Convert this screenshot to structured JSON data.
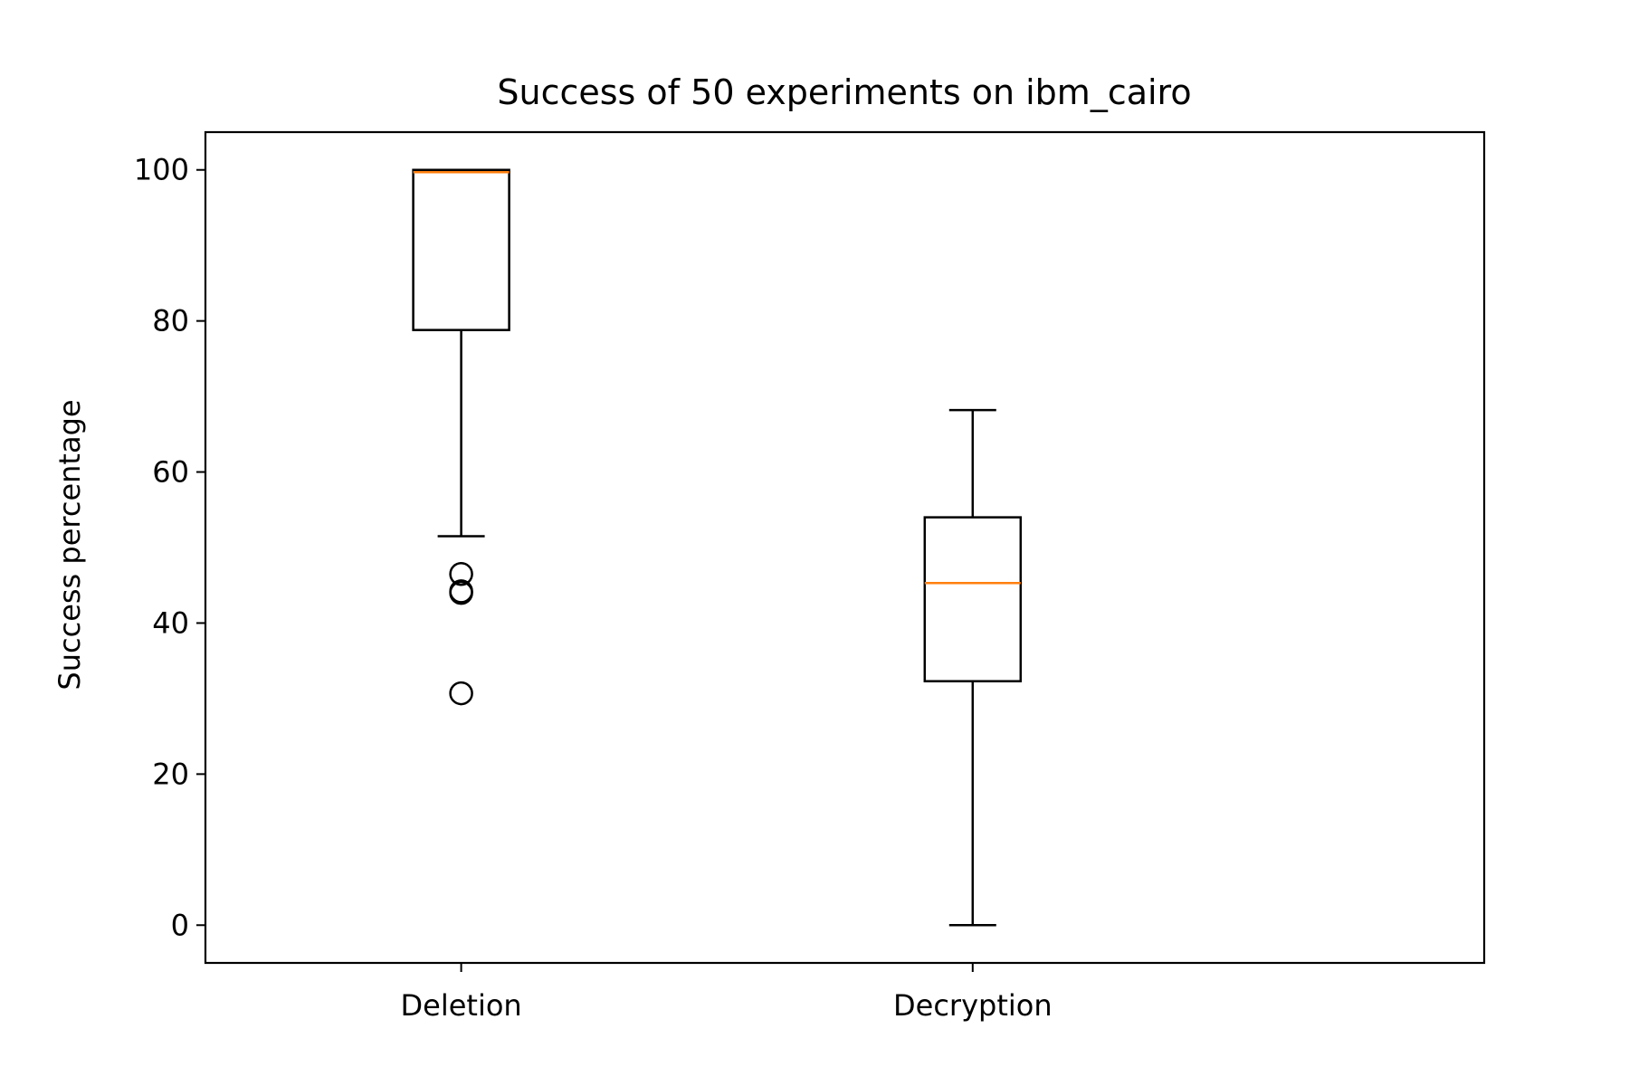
{
  "chart_data": {
    "type": "boxplot",
    "title": "Success of 50 experiments on ibm_cairo",
    "xlabel": "",
    "ylabel": "Success percentage",
    "ylim": [
      -5,
      105
    ],
    "yticks": [
      0,
      20,
      40,
      60,
      80,
      100
    ],
    "categories": [
      "Deletion",
      "Decryption"
    ],
    "boxes": [
      {
        "category": "Deletion",
        "whisker_low": 51.5,
        "q1": 78.8,
        "median": 99.7,
        "q3": 100,
        "whisker_high": 100,
        "outliers": [
          46.5,
          44.2,
          44.0,
          30.7
        ]
      },
      {
        "category": "Decryption",
        "whisker_low": 0,
        "q1": 32.3,
        "median": 45.3,
        "q3": 54.0,
        "whisker_high": 68.2,
        "outliers": []
      }
    ],
    "grid": false,
    "colors": {
      "box": "#000000",
      "median": "#ff7f0e",
      "background": "#ffffff"
    }
  }
}
